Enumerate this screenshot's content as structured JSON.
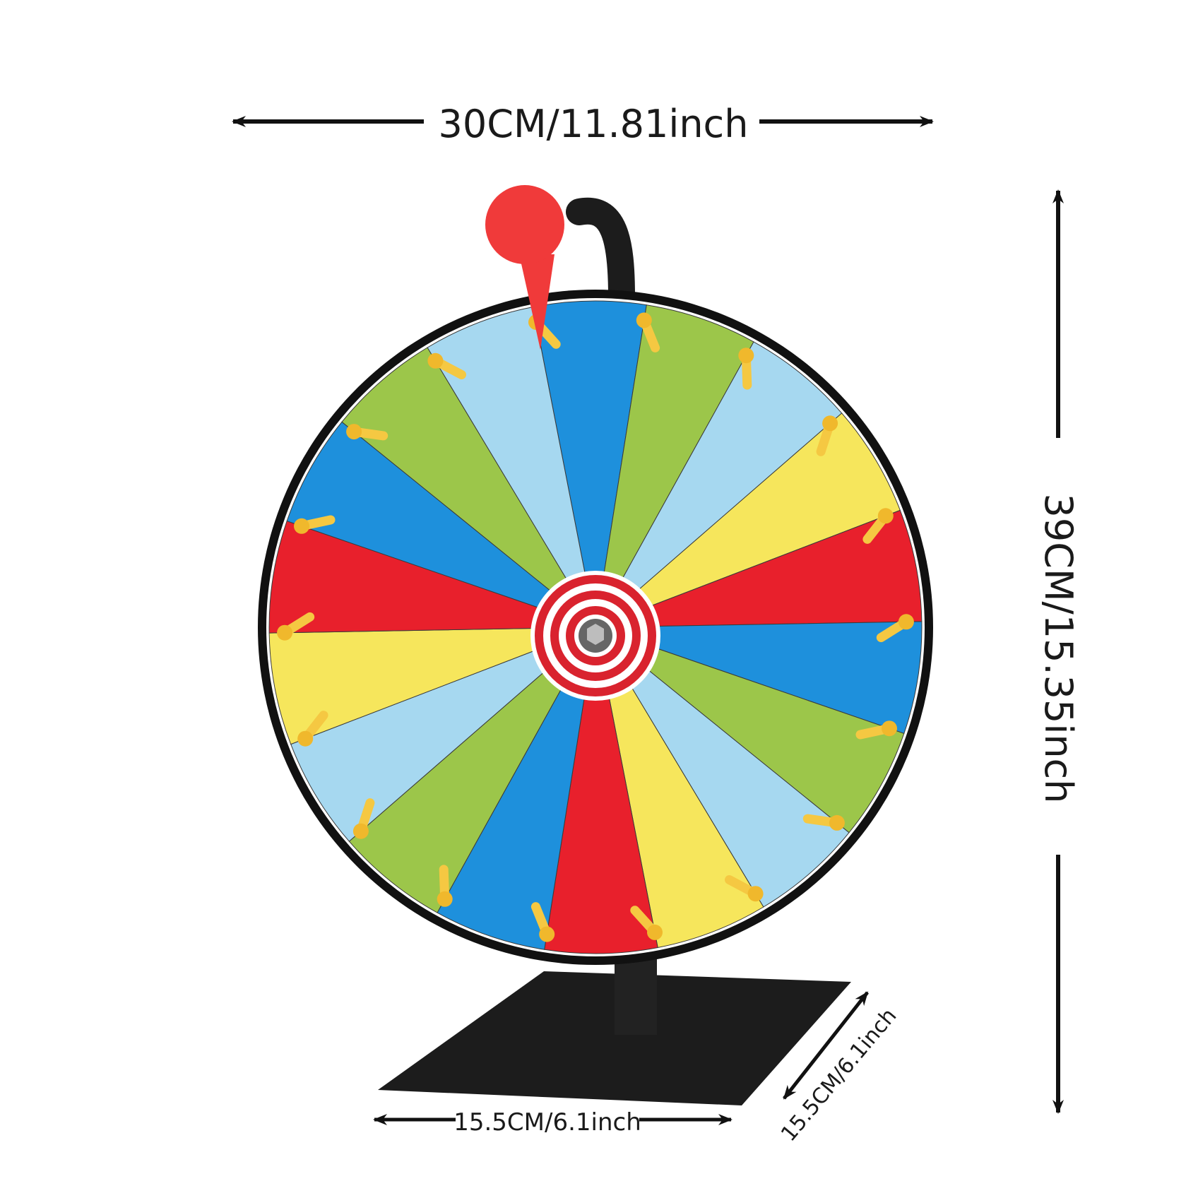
{
  "dimensions": {
    "width_label": "30CM/11.81inch",
    "height_label": "39CM/15.35inch",
    "base_width_label": "15.5CM/6.1inch",
    "base_depth_label": "15.5CM/6.1inch"
  },
  "wheel": {
    "segment_count": 18,
    "segment_colors": [
      "#1e90dc",
      "#9cc64a",
      "#a6d8f0",
      "#f6e65c",
      "#e8202c",
      "#1e90dc",
      "#9cc64a",
      "#a6d8f0",
      "#f6e65c",
      "#e8202c",
      "#1e90dc",
      "#9cc64a",
      "#a6d8f0",
      "#f6e65c",
      "#e8202c",
      "#1e90dc",
      "#9cc64a",
      "#a6d8f0"
    ],
    "rim_color": "#111111",
    "peg_color": "#f5c842",
    "hub_red": "#d9232e",
    "pointer_color": "#f03a3a",
    "stand_color": "#1c1c1c"
  }
}
